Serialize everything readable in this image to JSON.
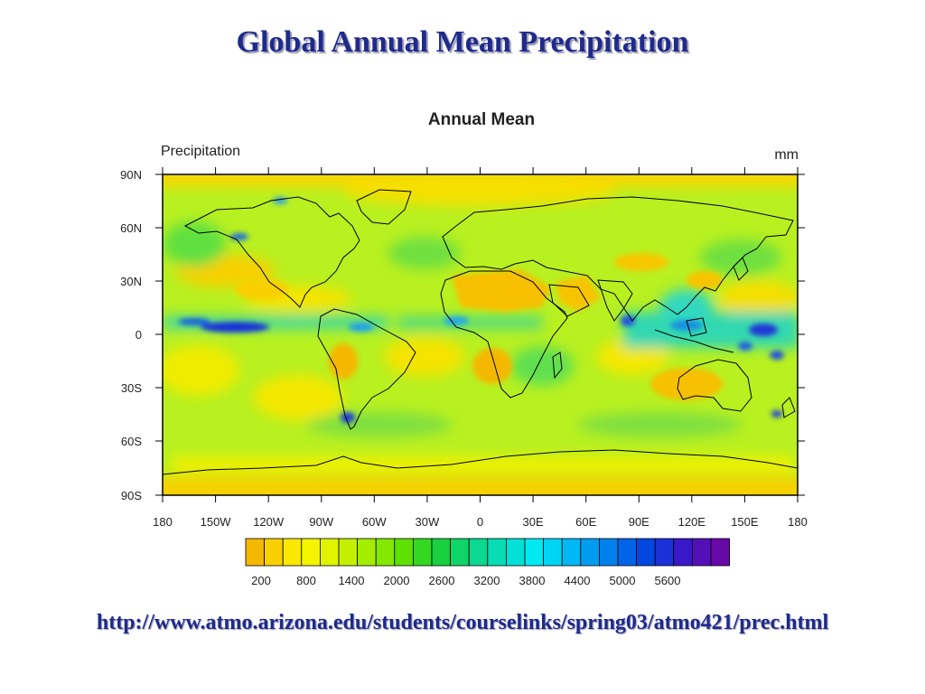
{
  "slide": {
    "title": "Global Annual Mean Precipitation",
    "source_url": "http://www.atmo.arizona.edu/students/courselinks/spring03/atmo421/prec.html"
  },
  "map": {
    "title": "Annual Mean",
    "field_label": "Precipitation",
    "units": "mm",
    "lat_labels": [
      "90N",
      "60N",
      "30N",
      "0",
      "30S",
      "60S",
      "90S"
    ],
    "lon_labels": [
      "180",
      "150W",
      "120W",
      "90W",
      "60W",
      "30W",
      "0",
      "30E",
      "60E",
      "90E",
      "120E",
      "150E",
      "180"
    ],
    "colorbar_labels": [
      "200",
      "800",
      "1400",
      "2000",
      "2600",
      "3200",
      "3800",
      "4400",
      "5000",
      "5600"
    ],
    "colorbar_colors": [
      "#f5b800",
      "#f8d000",
      "#fae800",
      "#f4f400",
      "#e0f400",
      "#c4f000",
      "#a4ec00",
      "#84e800",
      "#5ee000",
      "#34d820",
      "#18d040",
      "#10d468",
      "#0cd890",
      "#08dcb4",
      "#04e0d8",
      "#00e8f0",
      "#00d4f4",
      "#00b8f4",
      "#009cf0",
      "#0080ec",
      "#0064e8",
      "#0048e0",
      "#1c30d8",
      "#3818c8",
      "#5410b8",
      "#6808a8"
    ],
    "colors": {
      "ocean_base": "#b8f020",
      "land_dry": "#f7c000",
      "ocean_wet": "#1a40e0",
      "coast": "#000000"
    }
  }
}
